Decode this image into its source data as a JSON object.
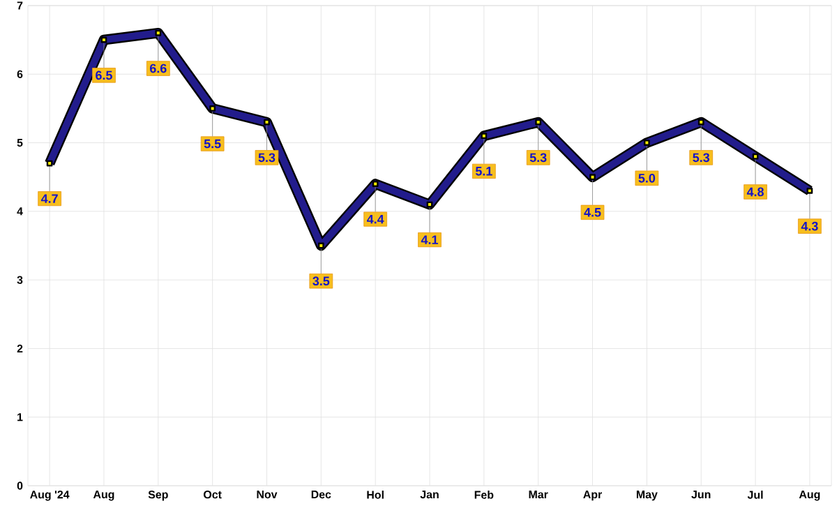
{
  "chart_data": {
    "type": "line",
    "categories": [
      "Aug '24",
      "Aug",
      "Sep",
      "Oct",
      "Nov",
      "Dec",
      "Hol",
      "Jan",
      "Feb",
      "Mar",
      "Apr",
      "May",
      "Jun",
      "Jul",
      "Aug"
    ],
    "series": [
      {
        "color": "#221c8c",
        "values": [
          4.7,
          6.5,
          6.6,
          5.5,
          5.3,
          3.5,
          4.4,
          4.1,
          5.1,
          5.3,
          4.5,
          5.0,
          5.3,
          4.8,
          4.3
        ],
        "value_labels": [
          "4.7",
          "6.5",
          "6.6",
          "5.5",
          "5.3",
          "3.5",
          "4.4",
          "4.1",
          "5.1",
          "5.3",
          "4.5",
          "5.0",
          "5.3",
          "4.8",
          "4.3"
        ]
      }
    ],
    "ylim": [
      0,
      7
    ],
    "yticks": [
      0,
      1,
      2,
      3,
      4,
      5,
      6,
      7
    ],
    "grid": true,
    "marker": "square"
  }
}
